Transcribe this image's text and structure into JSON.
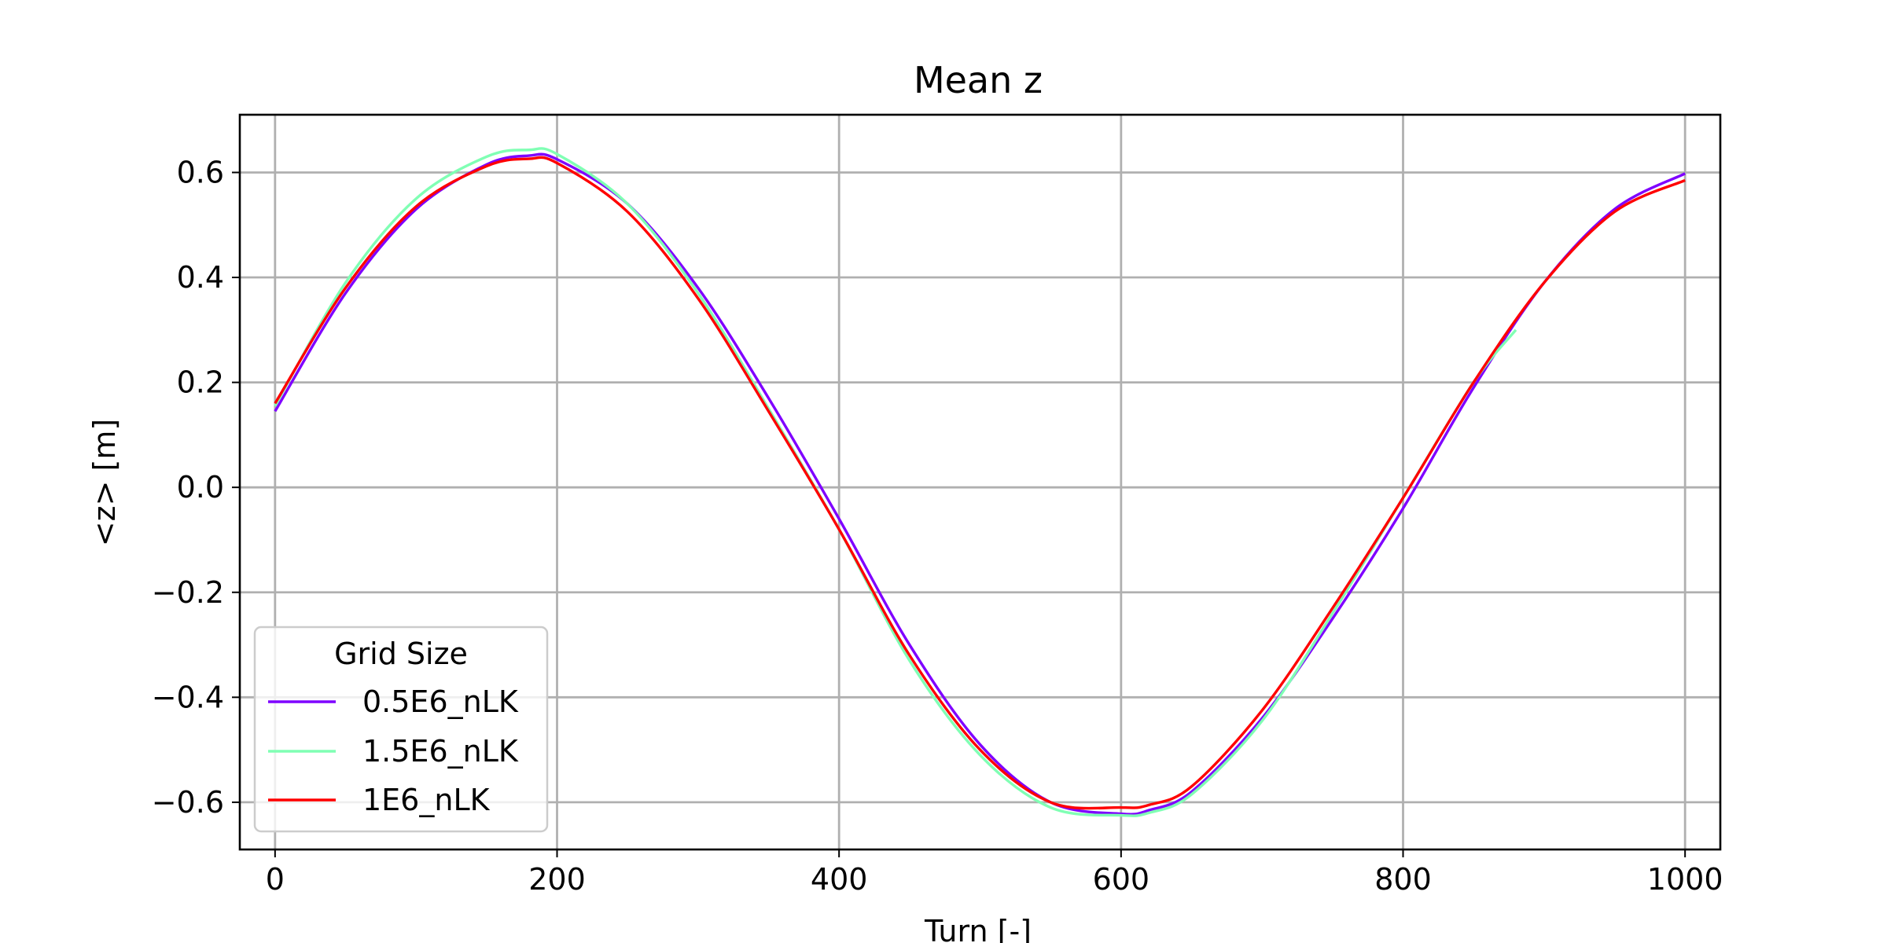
{
  "chart_data": {
    "type": "line",
    "title": "Mean z",
    "xlabel": "Turn [-]",
    "ylabel": "<z> [m]",
    "xlim": [
      -25,
      1025
    ],
    "ylim": [
      -0.69,
      0.71
    ],
    "xticks": [
      0,
      200,
      400,
      600,
      800,
      1000
    ],
    "xtick_labels": [
      "0",
      "200",
      "400",
      "600",
      "800",
      "1000"
    ],
    "yticks": [
      0.6,
      0.4,
      0.2,
      0.0,
      -0.2,
      -0.4,
      -0.6
    ],
    "ytick_labels": [
      "0.6",
      "0.4",
      "0.2",
      "0.0",
      "−0.2",
      "−0.4",
      "−0.6"
    ],
    "grid": true,
    "legend": {
      "title": "Grid Size",
      "placement": "lower-left"
    },
    "series": [
      {
        "name": "0.5E6_nLK",
        "color": "#7f00ff",
        "x": [
          0,
          50,
          100,
          150,
          180,
          200,
          250,
          300,
          350,
          400,
          450,
          500,
          550,
          600,
          620,
          650,
          700,
          750,
          800,
          850,
          900,
          950,
          1000
        ],
        "y": [
          0.145,
          0.37,
          0.53,
          0.615,
          0.632,
          0.625,
          0.54,
          0.38,
          0.17,
          -0.06,
          -0.3,
          -0.49,
          -0.6,
          -0.622,
          -0.615,
          -0.58,
          -0.44,
          -0.25,
          -0.04,
          0.19,
          0.39,
          0.53,
          0.598
        ]
      },
      {
        "name": "1.5E6_nLK",
        "color": "#80ffb4",
        "x": [
          0,
          50,
          100,
          150,
          180,
          200,
          250,
          300,
          350,
          400,
          450,
          500,
          550,
          600,
          620,
          650,
          700,
          750,
          800,
          850,
          880
        ],
        "y": [
          0.155,
          0.39,
          0.55,
          0.63,
          0.643,
          0.635,
          0.54,
          0.37,
          0.15,
          -0.08,
          -0.33,
          -0.51,
          -0.61,
          -0.625,
          -0.62,
          -0.585,
          -0.445,
          -0.24,
          -0.02,
          0.2,
          0.3
        ]
      },
      {
        "name": "1E6_nLK",
        "color": "#ff0000",
        "x": [
          0,
          50,
          100,
          150,
          180,
          200,
          250,
          300,
          350,
          400,
          450,
          500,
          550,
          600,
          620,
          650,
          700,
          750,
          800,
          850,
          900,
          950,
          1000
        ],
        "y": [
          0.16,
          0.38,
          0.535,
          0.612,
          0.626,
          0.618,
          0.525,
          0.36,
          0.145,
          -0.08,
          -0.32,
          -0.5,
          -0.6,
          -0.61,
          -0.605,
          -0.57,
          -0.425,
          -0.23,
          -0.02,
          0.2,
          0.39,
          0.525,
          0.585
        ]
      }
    ]
  }
}
